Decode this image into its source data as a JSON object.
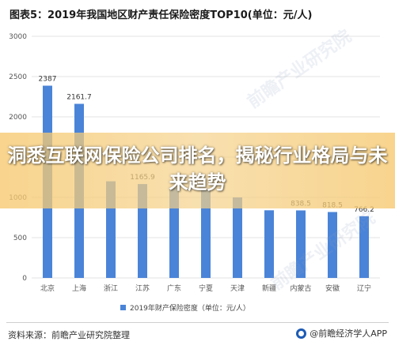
{
  "title": "图表5：2019年我国地区财产责任保险密度TOP10(单位：元/人)",
  "overlay_text": "洞悉互联网保险公司排名，揭秘行业格局与未来趋势",
  "source": "资料来源：前瞻产业研究院整理",
  "brand": "@前瞻经济学人APP",
  "watermark": "前瞻产业研究院",
  "colors": {
    "bar": "#4a84d8",
    "overlay": "#f6c86e"
  },
  "chart_data": {
    "type": "bar",
    "categories": [
      "北京",
      "上海",
      "浙江",
      "江苏",
      "广东",
      "宁夏",
      "天津",
      "新疆",
      "内蒙古",
      "安徽",
      "辽宁"
    ],
    "series": [
      {
        "name": "2019年财产保险密度（单位：元/人）",
        "values": [
          2387,
          2161.7,
          1200,
          1165.9,
          1120,
          1100,
          1000,
          840,
          838.5,
          818.5,
          766.2
        ]
      }
    ],
    "data_labels": [
      "2387",
      "2161.7",
      "",
      "1165.9",
      "",
      "",
      "",
      "",
      "838.5",
      "818.5",
      "766.2"
    ],
    "yticks": [
      0,
      500,
      1000,
      1500,
      2000,
      2500,
      3000
    ],
    "ylim": [
      0,
      3000
    ],
    "grid": true,
    "legend_position": "bottom"
  }
}
